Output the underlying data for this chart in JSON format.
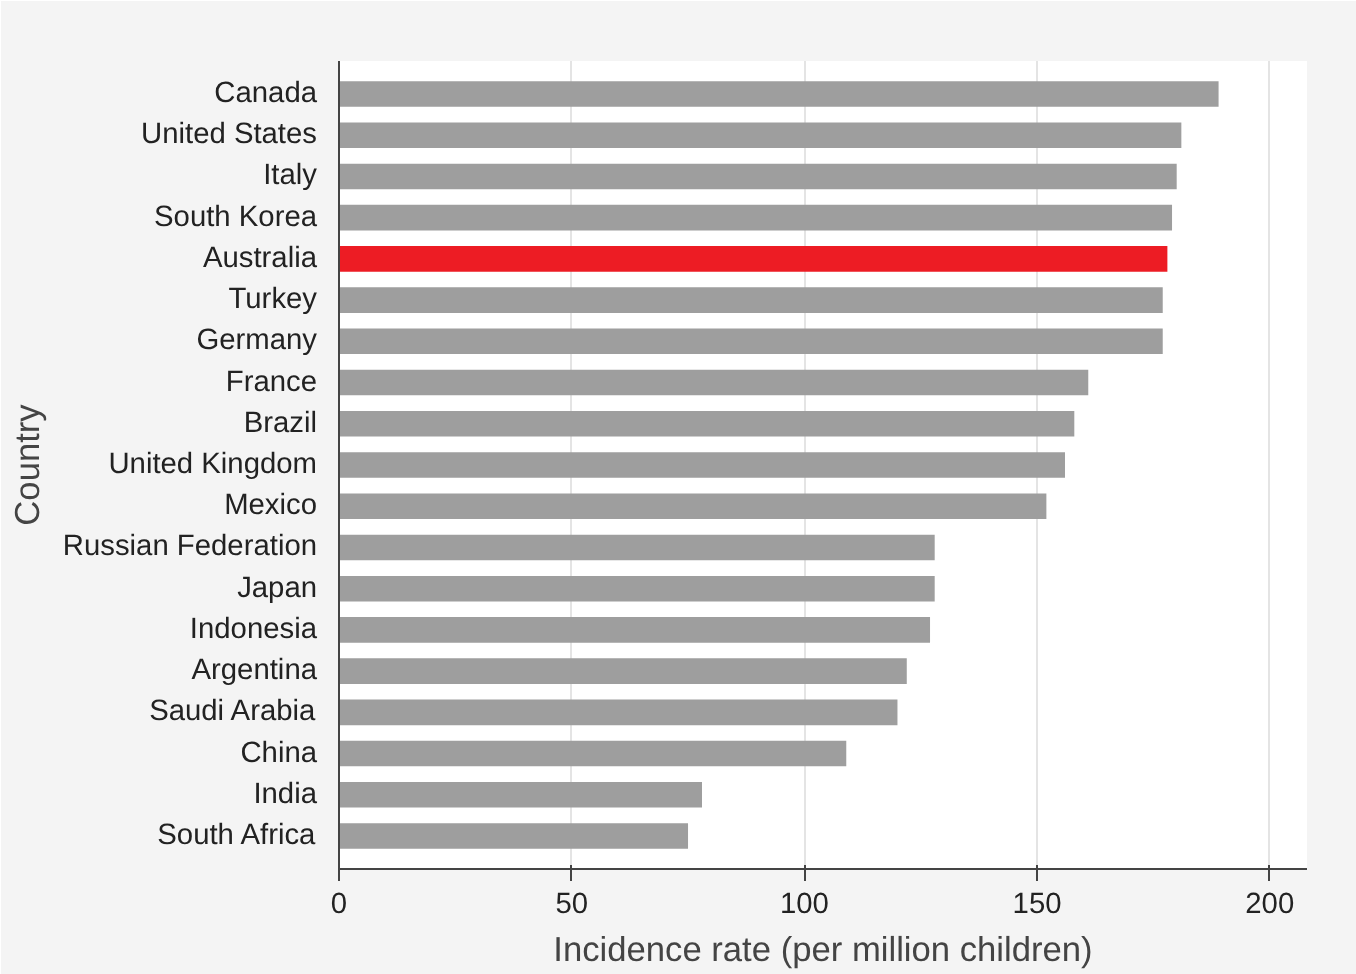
{
  "chart_data": {
    "type": "bar",
    "orientation": "horizontal",
    "xlabel": "Incidence rate (per million children)",
    "ylabel": "Country",
    "categories": [
      "Canada",
      "United States",
      "Italy",
      "South Korea",
      "Australia",
      "Turkey",
      "Germany",
      "France",
      "Brazil",
      "United Kingdom",
      "Mexico",
      "Russian Federation",
      "Japan",
      "Indonesia",
      "Argentina",
      "Saudi Arabia",
      "China",
      "India",
      "South Africa"
    ],
    "values": [
      189,
      181,
      180,
      179,
      178,
      177,
      177,
      161,
      158,
      156,
      152,
      128,
      128,
      127,
      122,
      120,
      109,
      78,
      75
    ],
    "colors": [
      "#9e9e9e",
      "#9e9e9e",
      "#9e9e9e",
      "#9e9e9e",
      "#ed1c24",
      "#9e9e9e",
      "#9e9e9e",
      "#9e9e9e",
      "#9e9e9e",
      "#9e9e9e",
      "#9e9e9e",
      "#9e9e9e",
      "#9e9e9e",
      "#9e9e9e",
      "#9e9e9e",
      "#9e9e9e",
      "#9e9e9e",
      "#9e9e9e",
      "#9e9e9e"
    ],
    "xlim": [
      0,
      208
    ],
    "xticks": [
      0,
      50,
      100,
      150,
      200
    ],
    "grid": "x"
  }
}
